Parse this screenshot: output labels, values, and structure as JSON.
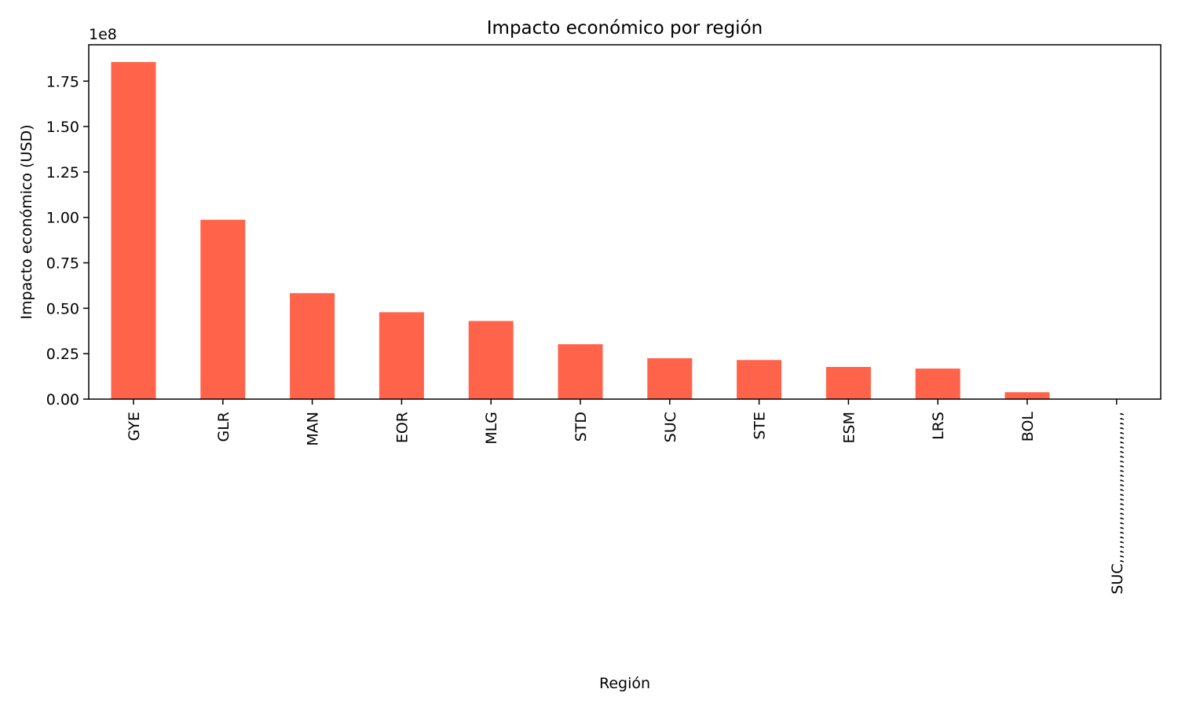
{
  "chart_data": {
    "type": "bar",
    "title": "Impacto económico por región",
    "xlabel": "Región",
    "ylabel": "Impacto económico (USD)",
    "y_scale_label": "1e8",
    "ylim": [
      0,
      1.95
    ],
    "yticks": [
      0.0,
      0.25,
      0.5,
      0.75,
      1.0,
      1.25,
      1.5,
      1.75
    ],
    "categories": [
      "GYE",
      "GLR",
      "MAN",
      "EOR",
      "MLG",
      "STD",
      "SUC",
      "STE",
      "ESM",
      "LRS",
      "BOL",
      "SUC,,,,,,,,,,,,,,,,,,,,,,,,,,,,,,,,"
    ],
    "values": [
      1.855,
      0.987,
      0.583,
      0.478,
      0.43,
      0.302,
      0.225,
      0.215,
      0.177,
      0.168,
      0.038,
      0.0
    ],
    "grid": false,
    "colors": {
      "bar": "#FF634A",
      "axis": "#000000"
    }
  }
}
